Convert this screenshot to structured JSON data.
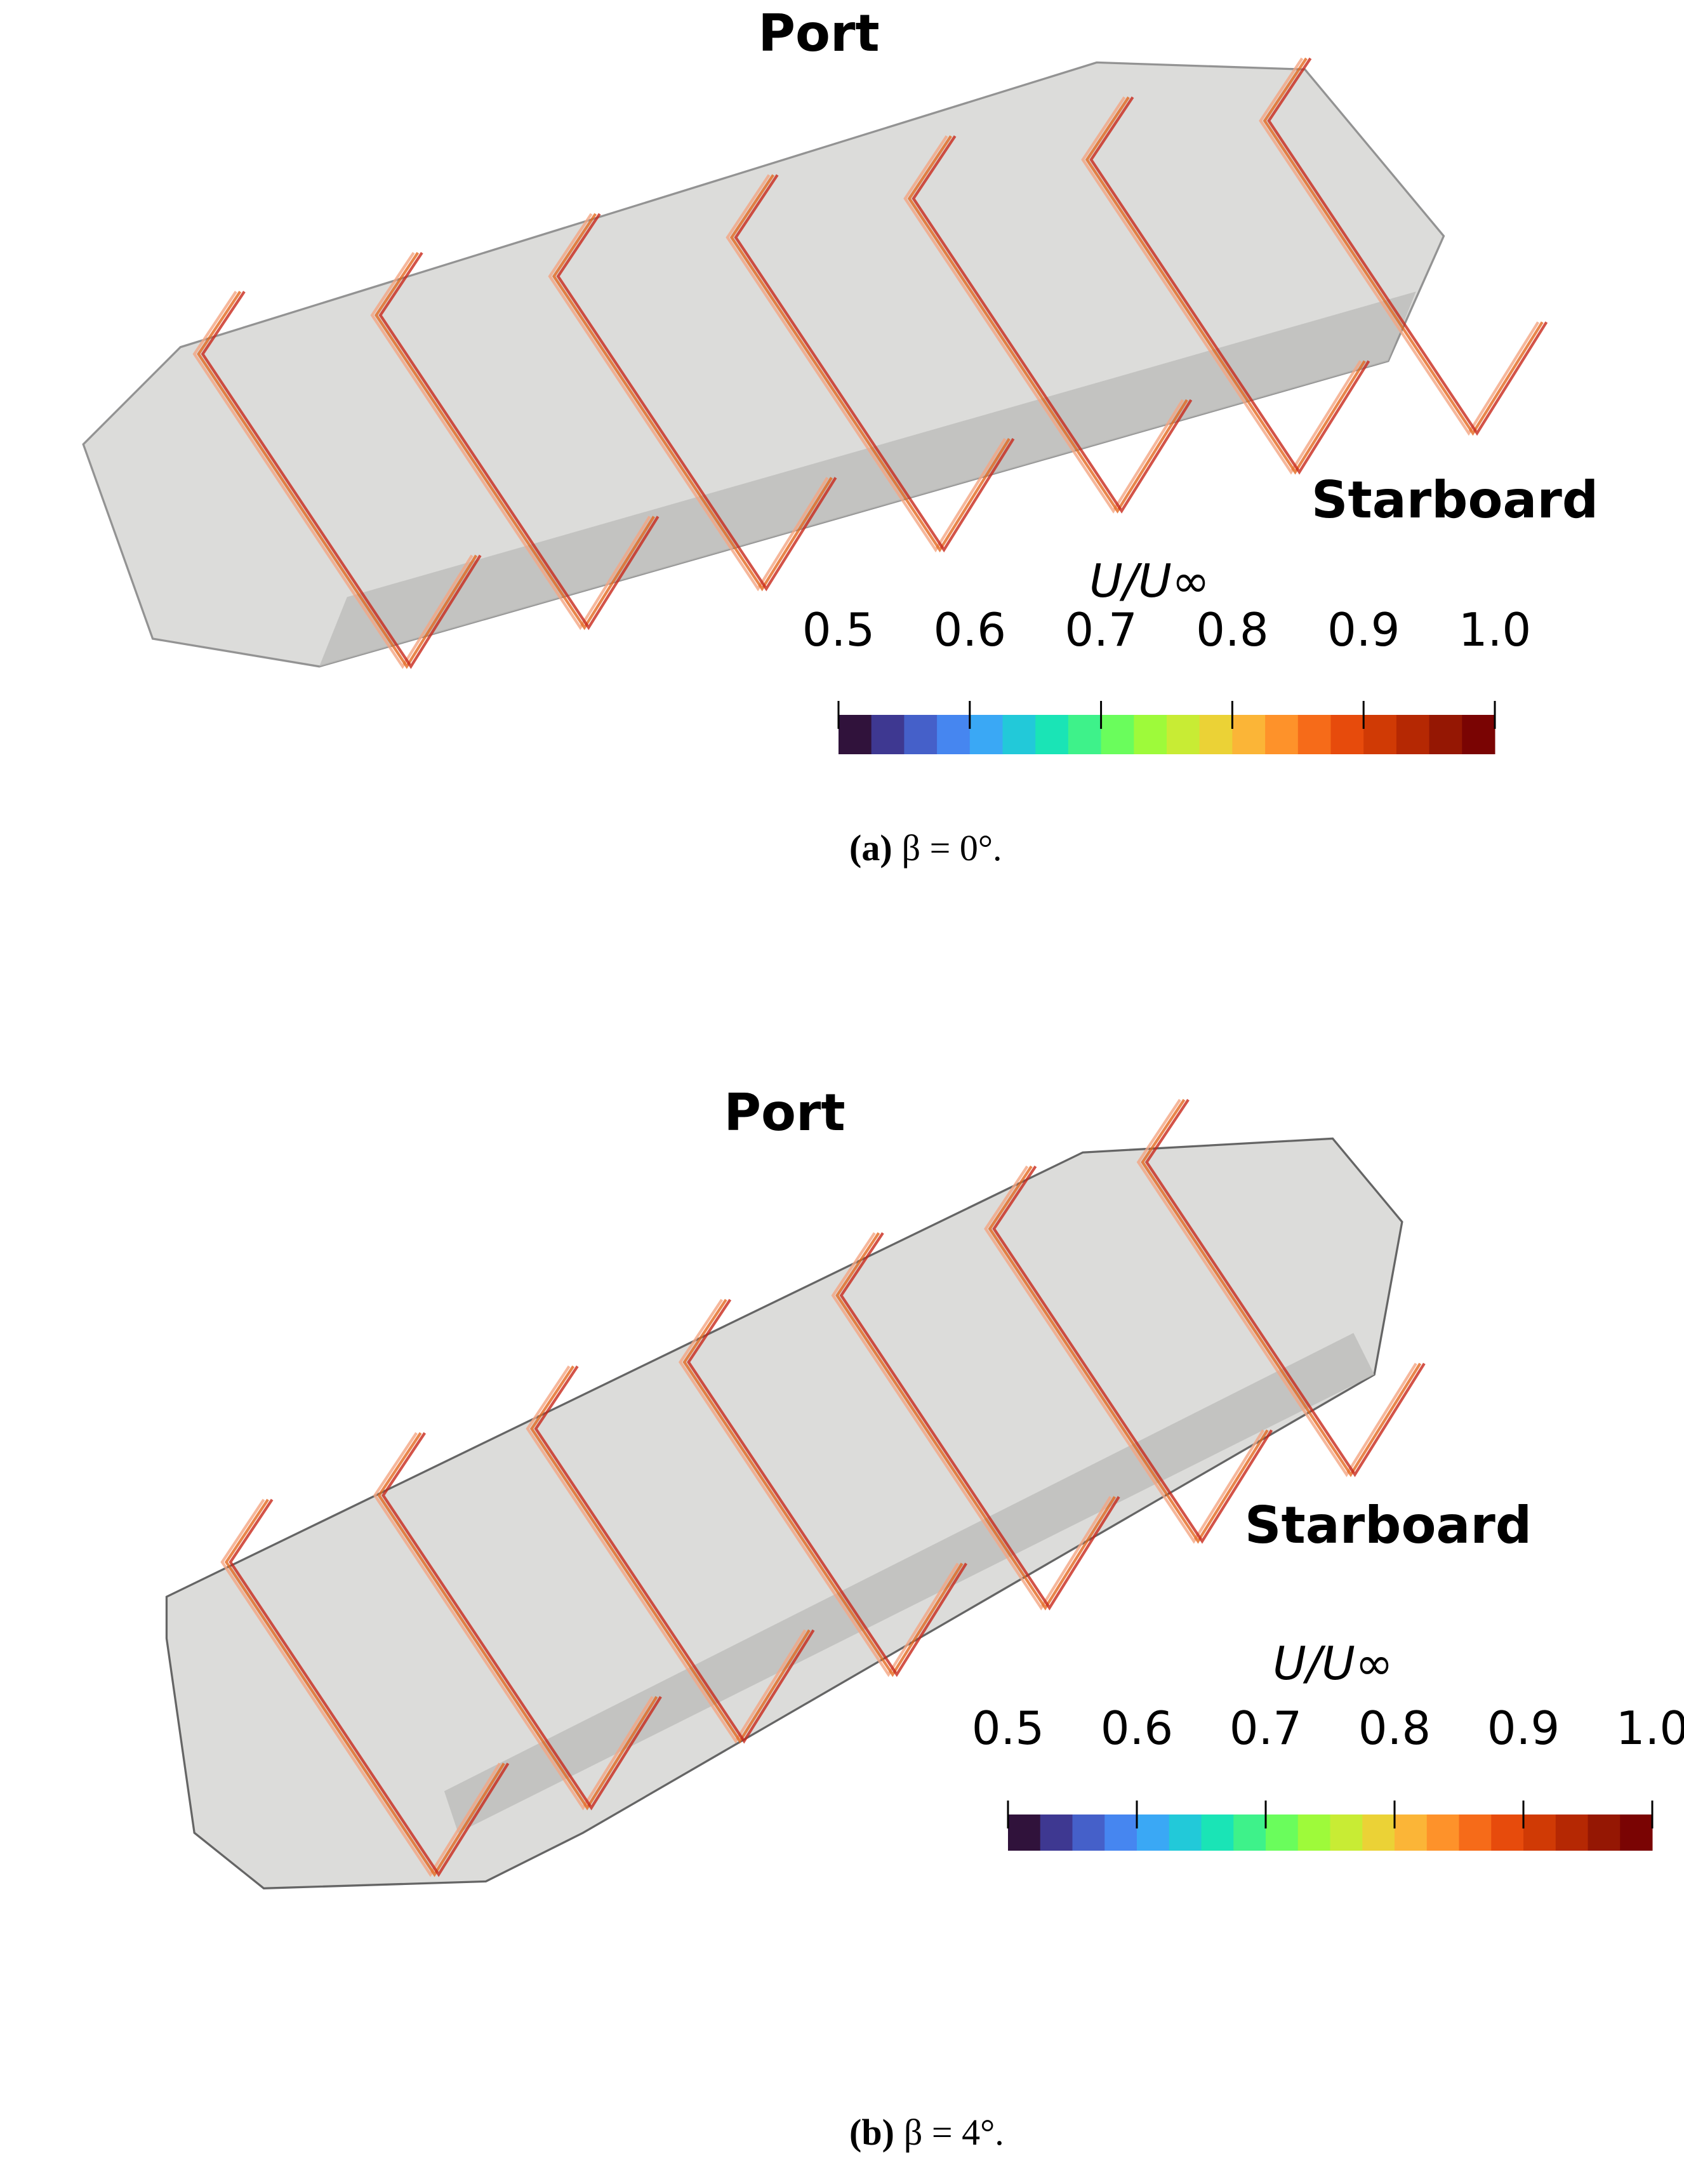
{
  "panels": [
    {
      "labels": {
        "port": "Port",
        "starboard": "Starboard"
      },
      "colorbar": {
        "title": "U/U∞",
        "lim": [
          0.5,
          1.0
        ],
        "ticks": [
          0.5,
          0.6,
          0.7,
          0.8,
          0.9,
          {
            "value": 1.0,
            "label": "1.0"
          }
        ],
        "colors": [
          "#30123b",
          "#3e3891",
          "#4560c9",
          "#4686f0",
          "#3aa8f5",
          "#22c9d9",
          "#1ae4b6",
          "#3ef28a",
          "#6afd5c",
          "#9efa3a",
          "#c8ec34",
          "#ebd236",
          "#fbb537",
          "#fe922a",
          "#f66b19",
          "#e74b0c",
          "#d03a05",
          "#b52803",
          "#951703",
          "#7a0403"
        ]
      },
      "caption": {
        "tag": "(a)",
        "text": "β = 0°."
      }
    },
    {
      "labels": {
        "port": "Port",
        "starboard": "Starboard"
      },
      "colorbar": {
        "title": "U/U∞",
        "lim": [
          0.5,
          1.0
        ],
        "ticks": [
          0.5,
          0.6,
          0.7,
          0.8,
          0.9,
          {
            "value": 1.0,
            "label": "1.0"
          }
        ],
        "colors": [
          "#30123b",
          "#3e3891",
          "#4560c9",
          "#4686f0",
          "#3aa8f5",
          "#22c9d9",
          "#1ae4b6",
          "#3ef28a",
          "#6afd5c",
          "#9efa3a",
          "#c8ec34",
          "#ebd236",
          "#fbb537",
          "#fe922a",
          "#f66b19",
          "#e74b0c",
          "#d03a05",
          "#b52803",
          "#951703",
          "#7a0403"
        ]
      },
      "caption": {
        "tag": "(b)",
        "text": "β = 4°."
      }
    }
  ]
}
